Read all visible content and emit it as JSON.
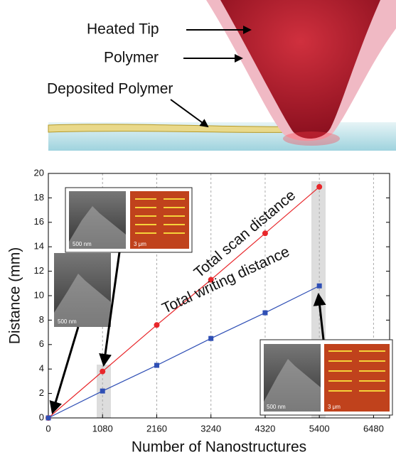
{
  "illustration": {
    "labels": [
      "Heated Tip",
      "Polymer",
      "Deposited Polymer"
    ]
  },
  "insets": [
    {
      "scale_labels": [
        "500 nm",
        "3 μm"
      ]
    },
    {
      "scale_labels": [
        "500 nm"
      ]
    },
    {
      "scale_labels": [
        "500 nm",
        "3 μm"
      ]
    }
  ],
  "chart_data": {
    "type": "line",
    "x_label": "Number of Nanostructures",
    "y_label": "Distance (mm)",
    "x": [
      0,
      1080,
      2160,
      3240,
      4320,
      5400
    ],
    "series": [
      {
        "name": "Total scan distance",
        "color": "#e8262a",
        "marker": "circle",
        "values": [
          0,
          3.8,
          7.6,
          11.3,
          15.1,
          18.9
        ]
      },
      {
        "name": "Total writing distance",
        "color": "#2f4fb5",
        "marker": "square",
        "values": [
          0,
          2.2,
          4.3,
          6.5,
          8.6,
          10.8
        ]
      }
    ],
    "xlim": [
      0,
      6800
    ],
    "ylim": [
      0,
      20
    ],
    "xticks": [
      0,
      1080,
      2160,
      3240,
      4320,
      5400,
      6480
    ],
    "yticks": [
      0,
      2,
      4,
      6,
      8,
      10,
      12,
      14,
      16,
      18,
      20
    ],
    "grid": true
  }
}
